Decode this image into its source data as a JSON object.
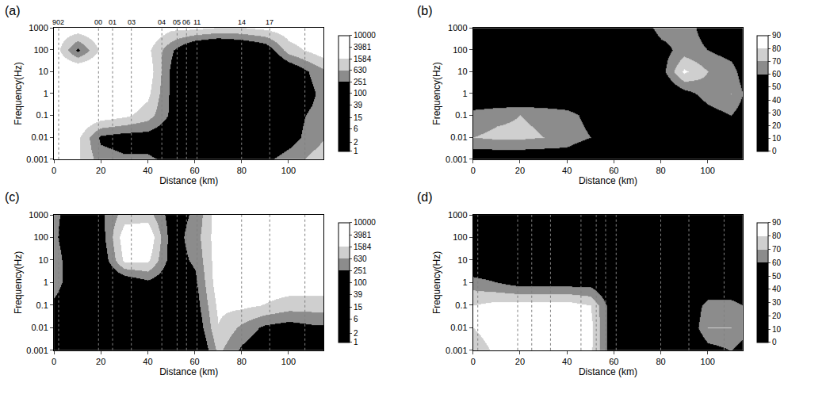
{
  "chart_data": [
    {
      "type": "heatmap",
      "label": "(a)",
      "x_label": "Distance (km)",
      "y_label": "Frequency(Hz)",
      "log": "y",
      "xlim": [
        0,
        115
      ],
      "xticks": [
        0,
        20,
        40,
        60,
        80,
        100
      ],
      "ylim": [
        0.001,
        1000
      ],
      "yticks": [
        0.001,
        0.01,
        0.1,
        1,
        10,
        100,
        1000
      ],
      "x": [
        0,
        10,
        20,
        30,
        40,
        50,
        60,
        70,
        80,
        90,
        100,
        110,
        115
      ],
      "y": [
        0.001,
        0.01,
        0.1,
        1,
        10,
        100,
        1000
      ],
      "cells": [
        [
          2000,
          1800,
          400,
          300,
          300,
          200,
          150,
          150,
          150,
          200,
          400,
          800,
          1000
        ],
        [
          3000,
          2000,
          200,
          150,
          150,
          100,
          50,
          50,
          50,
          80,
          150,
          400,
          600
        ],
        [
          5000,
          5000,
          3000,
          2000,
          1000,
          200,
          30,
          20,
          20,
          50,
          150,
          300,
          500
        ],
        [
          6000,
          8000,
          5000,
          4000,
          2000,
          200,
          20,
          15,
          15,
          30,
          100,
          200,
          400
        ],
        [
          5000,
          6000,
          5000,
          4000,
          3000,
          200,
          20,
          15,
          50,
          30,
          80,
          300,
          500
        ],
        [
          3000,
          200,
          2000,
          3000,
          2000,
          300,
          50,
          30,
          50,
          100,
          1000,
          2000,
          3000
        ],
        [
          3000,
          3000,
          4000,
          5000,
          4000,
          2000,
          2000,
          1500,
          1500,
          2000,
          3000,
          4000,
          4000
        ]
      ],
      "colorbar": {
        "log": true,
        "lim": [
          1,
          10000
        ],
        "ticks": [
          1,
          2,
          6,
          15,
          39,
          100,
          251,
          630,
          1584,
          3981,
          10000
        ],
        "colors": [
          "#000000",
          "#000000",
          "#000000",
          "#000000",
          "#000000",
          "#000000",
          "#8c8c8c",
          "#cfcfcf",
          "#ffffff",
          "#ffffff"
        ]
      },
      "stations": {
        "x": [
          2,
          19,
          25,
          33,
          46,
          52.5,
          56.5,
          61,
          80,
          92,
          107
        ],
        "labels": [
          "902",
          "00",
          "01",
          "03",
          "04",
          "05",
          "06",
          "11",
          "14",
          "17",
          null
        ]
      }
    },
    {
      "type": "heatmap",
      "label": "(b)",
      "x_label": "Distance (km)",
      "y_label": "Frequency(Hz)",
      "log": "y",
      "xlim": [
        0,
        115
      ],
      "xticks": [
        0,
        20,
        40,
        60,
        80,
        100
      ],
      "ylim": [
        0.001,
        1000
      ],
      "yticks": [
        0.001,
        0.01,
        0.1,
        1,
        10,
        100,
        1000
      ],
      "x": [
        0,
        10,
        20,
        30,
        40,
        50,
        60,
        70,
        80,
        90,
        100,
        110,
        115
      ],
      "y": [
        0.001,
        0.01,
        0.1,
        1,
        10,
        100,
        1000
      ],
      "cells": [
        [
          50,
          50,
          50,
          50,
          50,
          40,
          40,
          40,
          40,
          40,
          40,
          40,
          40
        ],
        [
          70,
          72,
          72,
          70,
          68,
          60,
          45,
          40,
          40,
          40,
          45,
          50,
          50
        ],
        [
          65,
          68,
          70,
          68,
          65,
          55,
          45,
          40,
          40,
          45,
          55,
          60,
          55
        ],
        [
          45,
          45,
          45,
          45,
          45,
          45,
          40,
          40,
          45,
          55,
          65,
          70,
          60
        ],
        [
          45,
          45,
          45,
          45,
          45,
          45,
          45,
          45,
          55,
          82,
          70,
          65,
          55
        ],
        [
          45,
          45,
          45,
          45,
          50,
          50,
          45,
          45,
          55,
          65,
          60,
          55,
          50
        ],
        [
          45,
          45,
          45,
          45,
          50,
          50,
          45,
          50,
          65,
          65,
          55,
          50,
          50
        ]
      ],
      "colorbar": {
        "log": false,
        "lim": [
          0,
          90
        ],
        "ticks": [
          0,
          10,
          20,
          30,
          40,
          50,
          60,
          70,
          80,
          90
        ],
        "colors": [
          "#000000",
          "#000000",
          "#000000",
          "#000000",
          "#000000",
          "#000000",
          "#8c8c8c",
          "#cfcfcf",
          "#ffffff"
        ]
      },
      "stations": {
        "x": [],
        "labels": []
      }
    },
    {
      "type": "heatmap",
      "label": "(c)",
      "x_label": "Distance (km)",
      "y_label": "Frequency(Hz)",
      "log": "y",
      "xlim": [
        0,
        115
      ],
      "xticks": [
        0,
        20,
        40,
        60,
        80,
        100
      ],
      "ylim": [
        0.001,
        1000
      ],
      "yticks": [
        0.001,
        0.01,
        0.1,
        1,
        10,
        100,
        1000
      ],
      "x": [
        0,
        10,
        20,
        30,
        40,
        50,
        60,
        70,
        80,
        90,
        100,
        110,
        115
      ],
      "y": [
        0.001,
        0.01,
        0.1,
        1,
        10,
        100,
        1000
      ],
      "cells": [
        [
          50,
          50,
          50,
          50,
          50,
          50,
          50,
          800,
          200,
          100,
          100,
          100,
          100
        ],
        [
          50,
          50,
          50,
          50,
          50,
          50,
          100,
          1500,
          500,
          200,
          150,
          200,
          200
        ],
        [
          200,
          100,
          50,
          50,
          50,
          50,
          150,
          2000,
          2000,
          1500,
          1000,
          1000,
          1000
        ],
        [
          400,
          100,
          50,
          100,
          200,
          100,
          200,
          3000,
          3000,
          3000,
          3000,
          3000,
          3000
        ],
        [
          400,
          100,
          100,
          2000,
          2000,
          150,
          300,
          3000,
          3000,
          3000,
          3000,
          3000,
          3000
        ],
        [
          300,
          100,
          150,
          3000,
          4000,
          150,
          400,
          3000,
          3000,
          3000,
          3000,
          5000,
          3000
        ],
        [
          300,
          150,
          200,
          1000,
          1000,
          150,
          300,
          3000,
          3000,
          3000,
          3000,
          3000,
          3000
        ]
      ],
      "colorbar": {
        "log": true,
        "lim": [
          1,
          10000
        ],
        "ticks": [
          1,
          2,
          6,
          15,
          39,
          100,
          251,
          630,
          1584,
          3981,
          10000
        ],
        "colors": [
          "#000000",
          "#000000",
          "#000000",
          "#000000",
          "#000000",
          "#000000",
          "#8c8c8c",
          "#cfcfcf",
          "#ffffff",
          "#ffffff"
        ]
      },
      "stations": {
        "x": [
          2,
          19,
          25,
          33,
          46,
          52.5,
          56.5,
          61,
          80,
          92,
          107
        ],
        "labels": []
      }
    },
    {
      "type": "heatmap",
      "label": "(d)",
      "x_label": "Distance (km)",
      "y_label": "Frequency(Hz)",
      "log": "y",
      "xlim": [
        0,
        115
      ],
      "xticks": [
        0,
        20,
        40,
        60,
        80,
        100
      ],
      "ylim": [
        0.001,
        1000
      ],
      "yticks": [
        0.001,
        0.01,
        0.1,
        1,
        10,
        100,
        1000
      ],
      "x": [
        0,
        10,
        20,
        30,
        40,
        50,
        60,
        70,
        80,
        90,
        100,
        110,
        115
      ],
      "y": [
        0.001,
        0.01,
        0.1,
        1,
        10,
        100,
        1000
      ],
      "cells": [
        [
          75,
          82,
          85,
          85,
          85,
          82,
          50,
          40,
          40,
          40,
          55,
          60,
          55
        ],
        [
          80,
          85,
          88,
          88,
          87,
          83,
          50,
          40,
          40,
          45,
          70,
          70,
          65
        ],
        [
          80,
          84,
          85,
          85,
          85,
          80,
          50,
          40,
          40,
          45,
          65,
          65,
          60
        ],
        [
          65,
          60,
          55,
          55,
          55,
          55,
          45,
          40,
          40,
          40,
          45,
          45,
          45
        ],
        [
          45,
          45,
          45,
          45,
          45,
          45,
          45,
          45,
          45,
          45,
          45,
          45,
          45
        ],
        [
          40,
          40,
          40,
          40,
          40,
          40,
          40,
          40,
          40,
          40,
          40,
          40,
          40
        ],
        [
          40,
          40,
          40,
          40,
          40,
          40,
          40,
          40,
          40,
          40,
          40,
          40,
          40
        ]
      ],
      "colorbar": {
        "log": false,
        "lim": [
          0,
          90
        ],
        "ticks": [
          0,
          10,
          20,
          30,
          40,
          50,
          60,
          70,
          80,
          90
        ],
        "colors": [
          "#000000",
          "#000000",
          "#000000",
          "#000000",
          "#000000",
          "#000000",
          "#8c8c8c",
          "#cfcfcf",
          "#ffffff"
        ]
      },
      "stations": {
        "x": [
          2,
          19,
          25,
          33,
          46,
          52.5,
          56.5,
          61,
          80,
          92,
          107
        ],
        "labels": []
      }
    }
  ]
}
